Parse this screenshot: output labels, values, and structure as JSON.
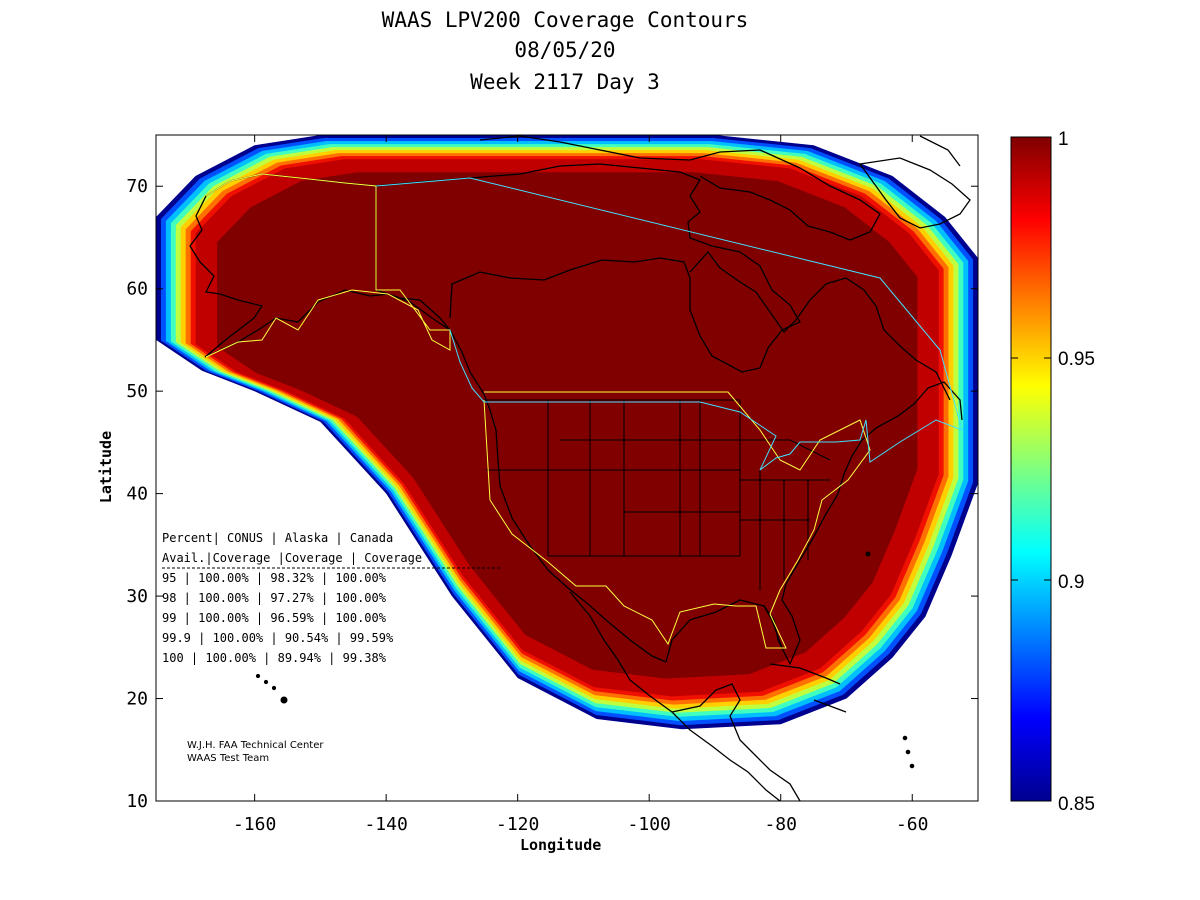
{
  "title_lines": [
    "WAAS LPV200 Coverage Contours",
    "08/05/20",
    "Week 2117 Day 3"
  ],
  "chart_data": {
    "type": "heatmap",
    "title": "WAAS LPV200 Coverage Contours",
    "subtitle": [
      "08/05/20",
      "Week 2117 Day 3"
    ],
    "xlabel": "Longitude",
    "ylabel": "Latitude",
    "xlim": [
      -175,
      -50
    ],
    "ylim": [
      10,
      75
    ],
    "xticks": [
      -160,
      -140,
      -120,
      -100,
      -80,
      -60
    ],
    "yticks": [
      10,
      20,
      30,
      40,
      50,
      60,
      70
    ],
    "colorbar": {
      "range": [
        0.85,
        1
      ],
      "ticks": [
        "0.85",
        "0.9",
        "0.95",
        "1"
      ],
      "colormap": "jet"
    },
    "coverage_region": {
      "description_value": "availability ≈ 1 over CONUS, Canada, most of Alaska; falls to 0.85 at the edge",
      "outer_boundary_lonlat": [
        [
          -175,
          55
        ],
        [
          -175,
          67
        ],
        [
          -169,
          71
        ],
        [
          -160,
          74
        ],
        [
          -150,
          75
        ],
        [
          -135,
          75
        ],
        [
          -120,
          75
        ],
        [
          -105,
          75
        ],
        [
          -90,
          75
        ],
        [
          -75,
          74
        ],
        [
          -63,
          71
        ],
        [
          -55,
          67
        ],
        [
          -50,
          63
        ],
        [
          -50,
          41
        ],
        [
          -54,
          34
        ],
        [
          -58,
          28
        ],
        [
          -63,
          24
        ],
        [
          -70,
          20
        ],
        [
          -80,
          17.5
        ],
        [
          -95,
          17
        ],
        [
          -108,
          18
        ],
        [
          -120,
          22
        ],
        [
          -130,
          30
        ],
        [
          -140,
          40
        ],
        [
          -150,
          47
        ],
        [
          -160,
          50
        ],
        [
          -168,
          52
        ],
        [
          -175,
          55
        ]
      ]
    },
    "stats_table": {
      "header_row1": [
        "Percent",
        "CONUS",
        "Alaska",
        "Canada"
      ],
      "header_row2": [
        "Avail.",
        "Coverage",
        "Coverage",
        "Coverage"
      ],
      "rows": [
        [
          "95",
          "100.00%",
          "98.32%",
          "100.00%"
        ],
        [
          "98",
          "100.00%",
          "97.27%",
          "100.00%"
        ],
        [
          "99",
          "100.00%",
          "96.59%",
          "100.00%"
        ],
        [
          "99.9",
          "100.00%",
          "90.54%",
          "99.59%"
        ],
        [
          "100",
          "100.00%",
          "89.94%",
          "99.38%"
        ]
      ]
    },
    "credit_lines": [
      "W.J.H. FAA Technical Center",
      "WAAS Test Team"
    ]
  },
  "table_lines": [
    "Percent| CONUS   | Alaska  | Canada",
    " Avail.|Coverage |Coverage | Coverage",
    "----------------------------------------",
    "  95   | 100.00%  | 98.32% | 100.00%",
    "  98   | 100.00%  | 97.27% | 100.00%",
    "  99   | 100.00%  | 96.59% | 100.00%",
    "99.9   | 100.00%  | 90.54% | 99.59%",
    " 100   | 100.00%  | 89.94% | 99.38%"
  ],
  "colors": {
    "core": "#800000",
    "bands": [
      "#00008f",
      "#0050ff",
      "#00bfff",
      "#40ffbf",
      "#bfff40",
      "#ffcf00",
      "#ff7000",
      "#f01000",
      "#c00000"
    ]
  }
}
